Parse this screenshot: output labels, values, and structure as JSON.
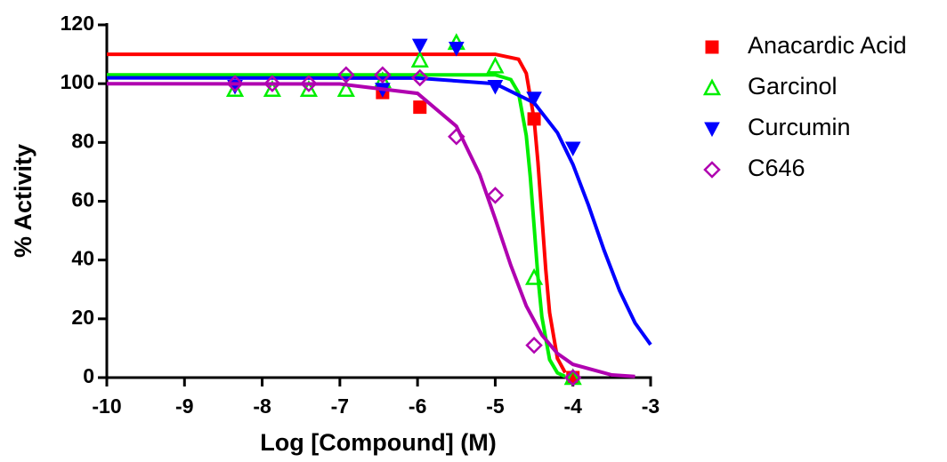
{
  "chart_data": {
    "type": "scatter",
    "xlabel": "Log [Compound] (M)",
    "ylabel": "% Activity",
    "xlim": [
      -10,
      -3
    ],
    "xticks": [
      -10,
      -9,
      -8,
      -7,
      -6,
      -5,
      -4,
      -3
    ],
    "ylim": [
      0,
      120
    ],
    "yticks": [
      0,
      20,
      40,
      60,
      80,
      100,
      120
    ],
    "series": [
      {
        "name": "Anacardic Acid",
        "color": "#ff0000",
        "marker": "square",
        "x": [
          -6.45,
          -5.97,
          -4.5,
          -4.0
        ],
        "values": [
          97,
          92,
          88,
          0
        ],
        "curve_x": [
          -10,
          -5,
          -4.7,
          -4.6,
          -4.5,
          -4.45,
          -4.4,
          -4.35,
          -4.3,
          -4.2,
          -4.1
        ],
        "curve_values": [
          110,
          110,
          108.3,
          103.5,
          87.9,
          73.3,
          55,
          36.7,
          22.1,
          6.5,
          1.7
        ]
      },
      {
        "name": "Garcinol",
        "color": "#00ee00",
        "marker": "triangle-up-open",
        "x": [
          -8.35,
          -7.87,
          -7.4,
          -6.92,
          -6.45,
          -5.97,
          -5.5,
          -5.0,
          -4.5,
          -4.0
        ],
        "values": [
          98,
          98,
          98,
          98,
          101,
          108,
          114,
          106,
          34,
          0
        ],
        "curve_x": [
          -10,
          -5,
          -4.8,
          -4.7,
          -4.6,
          -4.55,
          -4.5,
          -4.45,
          -4.4,
          -4.3,
          -4.2,
          -4.1
        ],
        "curve_values": [
          103,
          103,
          101.4,
          96.9,
          82.3,
          68.6,
          51.5,
          34.3,
          20.7,
          6.1,
          1.6,
          0.4
        ]
      },
      {
        "name": "Curcumin",
        "color": "#0000ff",
        "marker": "triangle-down",
        "x": [
          -8.35,
          -6.45,
          -5.97,
          -5.5,
          -5.0,
          -4.5,
          -4.0
        ],
        "values": [
          99,
          98,
          113,
          112,
          99,
          95,
          78
        ],
        "curve_x": [
          -10,
          -6,
          -5,
          -4.5,
          -4.2,
          -4,
          -3.8,
          -3.6,
          -3.4,
          -3.2,
          -3
        ],
        "curve_values": [
          102,
          101.9,
          100,
          93.5,
          83.3,
          72.5,
          58.6,
          43.4,
          29.6,
          18.6,
          11.2
        ]
      },
      {
        "name": "C646",
        "color": "#b000b0",
        "marker": "diamond-open",
        "x": [
          -8.35,
          -7.87,
          -7.4,
          -6.92,
          -6.45,
          -5.97,
          -5.5,
          -5.0,
          -4.5,
          -4.0
        ],
        "values": [
          100,
          100,
          100,
          103,
          103,
          102,
          82,
          62,
          11,
          0
        ],
        "curve_x": [
          -10,
          -7,
          -6,
          -5.5,
          -5.2,
          -5,
          -4.8,
          -4.6,
          -4.4,
          -4.2,
          -4,
          -3.5,
          -3.2
        ],
        "curve_values": [
          100,
          99.9,
          96.7,
          85.5,
          69.1,
          54,
          38.2,
          24.4,
          14.5,
          8.2,
          4.5,
          0.9,
          0.35
        ]
      }
    ]
  }
}
